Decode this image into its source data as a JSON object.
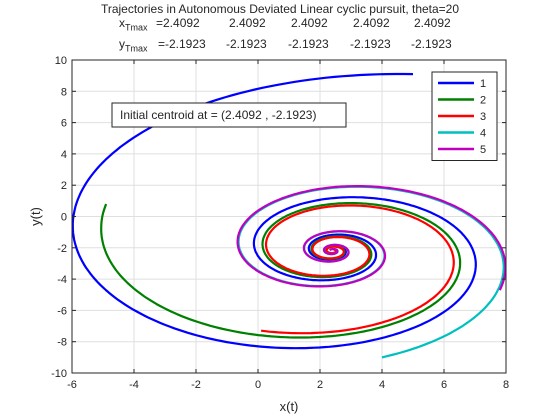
{
  "chart_data": {
    "type": "line",
    "title": "Trajectories in Autonomous Deviated Linear cyclic pursuit, theta=20",
    "tmax": {
      "x_label_main": "x",
      "x_label_sub": "Tmax",
      "y_label_main": "y",
      "y_label_sub": "Tmax",
      "x_values": [
        "=2.4092",
        "2.4092",
        "2.4092",
        "2.4092",
        "2.4092"
      ],
      "y_values": [
        "=-2.1923",
        "-2.1923",
        "-2.1923",
        "-2.1923",
        "-2.1923"
      ]
    },
    "xlabel": "x(t)",
    "ylabel": "y(t)",
    "xlim": [
      -6,
      8
    ],
    "ylim": [
      -10,
      10
    ],
    "xticks": [
      -6,
      -4,
      -2,
      0,
      2,
      4,
      6,
      8
    ],
    "yticks": [
      -10,
      -8,
      -6,
      -4,
      -2,
      0,
      2,
      4,
      6,
      8,
      10
    ],
    "grid": true,
    "legend_position": "top-right",
    "centroid": [
      2.4092,
      -2.1923
    ],
    "theta_deg": 20,
    "annotation": "Initial centroid at = (2.4092 , -2.1923)",
    "series": [
      {
        "name": "1",
        "color": "#0000ff",
        "start": [
          5.0,
          9.1
        ]
      },
      {
        "name": "2",
        "color": "#008000",
        "start": [
          -4.9,
          0.8
        ]
      },
      {
        "name": "3",
        "color": "#ff0000",
        "start": [
          0.1,
          -7.3
        ]
      },
      {
        "name": "4",
        "color": "#00bfbf",
        "start": [
          4.0,
          -9.0
        ]
      },
      {
        "name": "5",
        "color": "#bf00bf",
        "start": [
          7.8,
          -4.7
        ]
      }
    ]
  }
}
